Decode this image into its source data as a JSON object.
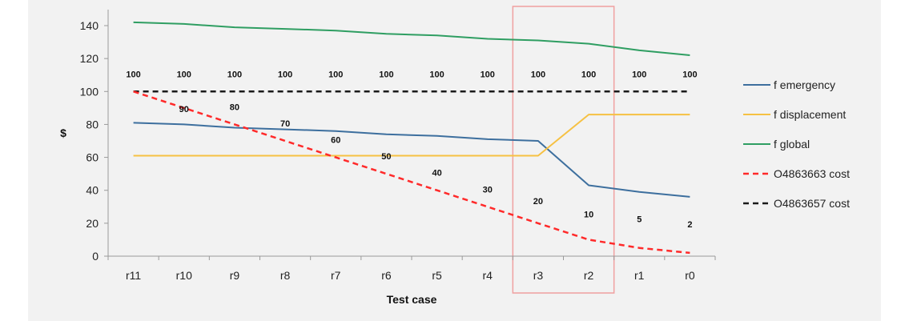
{
  "chart_data": {
    "type": "line",
    "xlabel": "Test case",
    "ylabel": "$",
    "ylim": [
      0,
      140
    ],
    "yticks": [
      0,
      20,
      40,
      60,
      80,
      100,
      120,
      140
    ],
    "categories": [
      "r11",
      "r10",
      "r9",
      "r8",
      "r7",
      "r6",
      "r5",
      "r4",
      "r3",
      "r2",
      "r1",
      "r0"
    ],
    "grid": false,
    "legend_position": "right",
    "highlighted_categories": [
      "r3",
      "r2"
    ],
    "series": [
      {
        "name": "f emergency",
        "color": "#3d6f9e",
        "dash": "solid",
        "values": [
          81,
          80,
          78,
          77,
          76,
          74,
          73,
          71,
          70,
          43,
          39,
          36
        ]
      },
      {
        "name": "f displacement",
        "color": "#f6c143",
        "dash": "solid",
        "values": [
          61,
          61,
          61,
          61,
          61,
          61,
          61,
          61,
          61,
          86,
          86,
          86
        ]
      },
      {
        "name": "f global",
        "color": "#2f9e62",
        "dash": "solid",
        "values": [
          142,
          141,
          139,
          138,
          137,
          135,
          134,
          132,
          131,
          129,
          125,
          122
        ]
      },
      {
        "name": "O4863663 cost",
        "color": "#ff2a2a",
        "dash": "dashed",
        "values": [
          100,
          90,
          80,
          70,
          60,
          50,
          40,
          30,
          20,
          10,
          5,
          2
        ],
        "data_labels": [
          "100",
          "90",
          "80",
          "70",
          "60",
          "50",
          "40",
          "30",
          "20",
          "10",
          "5",
          "2"
        ]
      },
      {
        "name": "O4863657 cost",
        "color": "#1a1a1a",
        "dash": "dashed",
        "values": [
          100,
          100,
          100,
          100,
          100,
          100,
          100,
          100,
          100,
          100,
          100,
          100
        ],
        "data_labels": [
          "100",
          "100",
          "100",
          "100",
          "100",
          "100",
          "100",
          "100",
          "100",
          "100",
          "100",
          "100"
        ]
      }
    ]
  }
}
